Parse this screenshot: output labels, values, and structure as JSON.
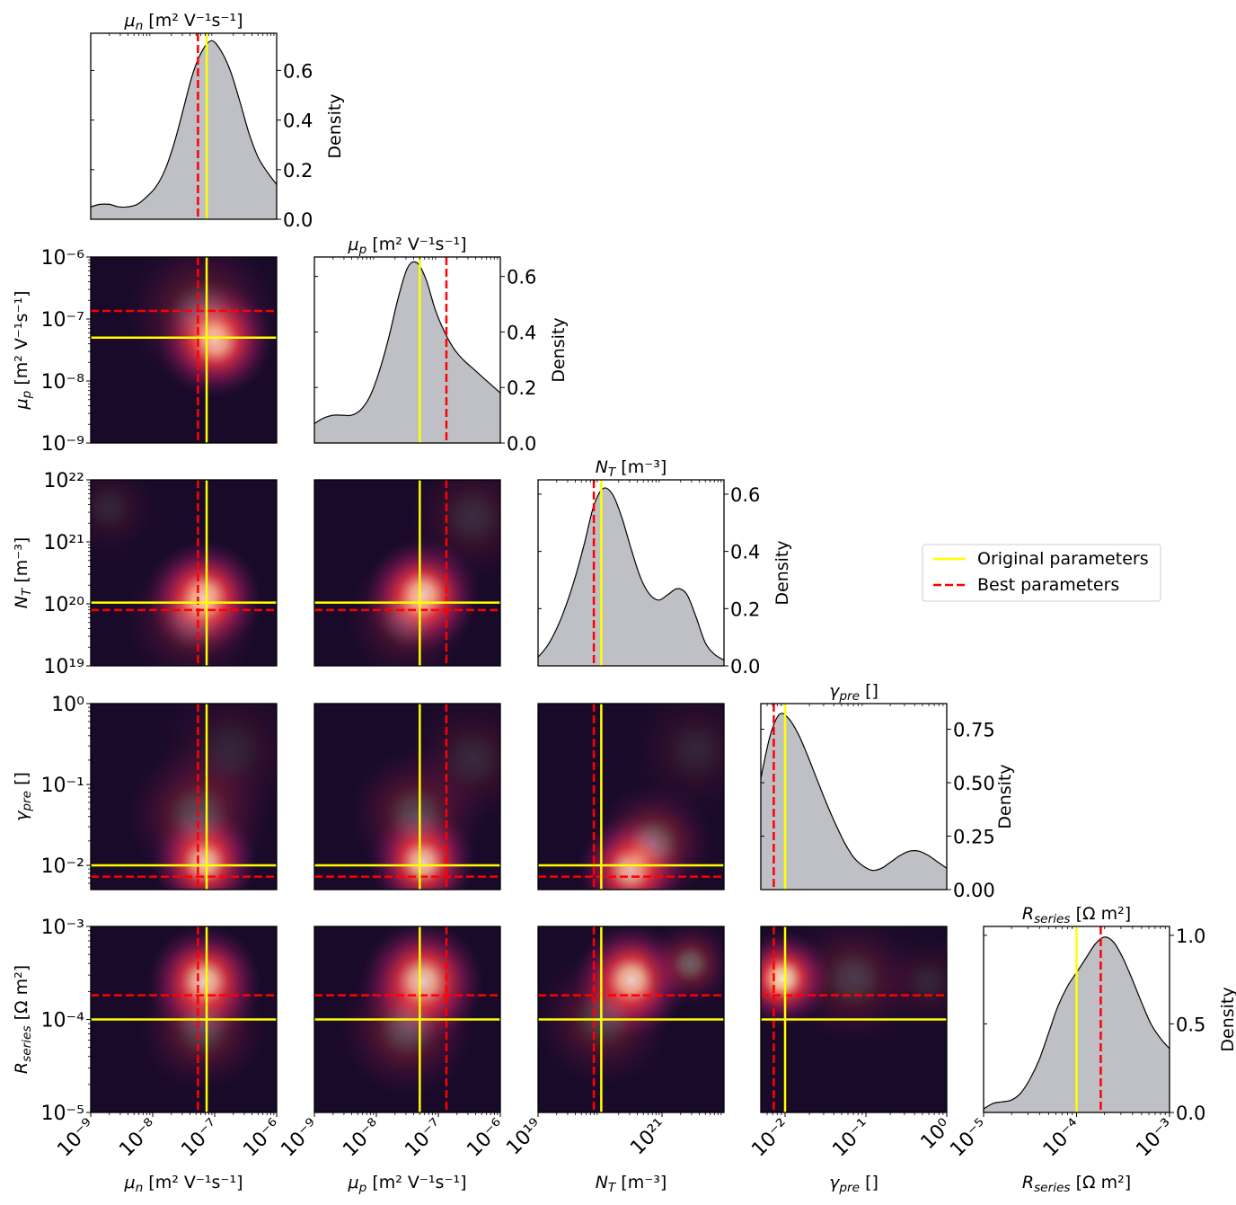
{
  "chart_data": {
    "type": "corner",
    "colors": {
      "original": "#ffff00",
      "best": "#ff0000",
      "kde_fill": "#bfc0c5",
      "kde_line": "#000000",
      "heat_low": "#03051a",
      "heat_mid": "#a11a5b",
      "heat_high": "#faebdd"
    },
    "legend": {
      "position": "right-middle",
      "original_label": "Original parameters",
      "best_label": "Best parameters"
    },
    "parameters": [
      {
        "key": "mun",
        "label": "μn [m² V⁻¹s⁻¹]",
        "sym": "μ",
        "sub": "n",
        "unit": " [m² V⁻¹s⁻¹]",
        "log_min": -9,
        "log_max": -6,
        "ticks": [
          {
            "exp": -9,
            "label": "10⁻⁹"
          },
          {
            "exp": -8,
            "label": "10⁻⁸"
          },
          {
            "exp": -7,
            "label": "10⁻⁷"
          },
          {
            "exp": -6,
            "label": "10⁻⁶"
          }
        ],
        "original_log": -7.13,
        "best_log": -7.27,
        "density_ticks": [
          {
            "value": 0.0,
            "label": "0.0"
          },
          {
            "value": 0.2,
            "label": "0.2"
          },
          {
            "value": 0.4,
            "label": "0.4"
          },
          {
            "value": 0.6,
            "label": "0.6"
          }
        ],
        "density_max": 0.75,
        "density": [
          0.05,
          0.06,
          0.06,
          0.05,
          0.05,
          0.06,
          0.09,
          0.13,
          0.2,
          0.31,
          0.45,
          0.59,
          0.68,
          0.72,
          0.68,
          0.6,
          0.48,
          0.35,
          0.25,
          0.19,
          0.14
        ]
      },
      {
        "key": "mup",
        "label": "μp [m² V⁻¹s⁻¹]",
        "sym": "μ",
        "sub": "p",
        "unit": " [m² V⁻¹s⁻¹]",
        "log_min": -9,
        "log_max": -6,
        "ticks": [
          {
            "exp": -9,
            "label": "10⁻⁹"
          },
          {
            "exp": -8,
            "label": "10⁻⁸"
          },
          {
            "exp": -7,
            "label": "10⁻⁷"
          },
          {
            "exp": -6,
            "label": "10⁻⁶"
          }
        ],
        "original_log": -7.3,
        "best_log": -6.87,
        "density_ticks": [
          {
            "value": 0.0,
            "label": "0.0"
          },
          {
            "value": 0.2,
            "label": "0.2"
          },
          {
            "value": 0.4,
            "label": "0.4"
          },
          {
            "value": 0.6,
            "label": "0.6"
          }
        ],
        "density_max": 0.67,
        "density": [
          0.07,
          0.09,
          0.1,
          0.1,
          0.1,
          0.12,
          0.17,
          0.26,
          0.38,
          0.52,
          0.63,
          0.65,
          0.59,
          0.48,
          0.4,
          0.34,
          0.3,
          0.27,
          0.24,
          0.21,
          0.18
        ]
      },
      {
        "key": "nt",
        "label": "NT [m⁻³]",
        "sym": "N",
        "sub": "T",
        "unit": " [m⁻³]",
        "log_min": 19,
        "log_max": 22,
        "ticks": [
          {
            "exp": 19,
            "label": "10¹⁹"
          },
          {
            "exp": 21,
            "label": "10²¹"
          }
        ],
        "axis_ticks": [
          {
            "exp": 19,
            "label": "10¹⁹"
          },
          {
            "exp": 20,
            "label": "10²⁰"
          },
          {
            "exp": 21,
            "label": "10²¹"
          },
          {
            "exp": 22,
            "label": "10²²"
          }
        ],
        "original_log": 20.02,
        "best_log": 19.9,
        "density_ticks": [
          {
            "value": 0.0,
            "label": "0.0"
          },
          {
            "value": 0.2,
            "label": "0.2"
          },
          {
            "value": 0.4,
            "label": "0.4"
          },
          {
            "value": 0.6,
            "label": "0.6"
          }
        ],
        "density_max": 0.65,
        "density": [
          0.03,
          0.07,
          0.13,
          0.21,
          0.31,
          0.43,
          0.56,
          0.62,
          0.6,
          0.52,
          0.41,
          0.31,
          0.25,
          0.23,
          0.25,
          0.27,
          0.25,
          0.17,
          0.08,
          0.04,
          0.02
        ]
      },
      {
        "key": "gpre",
        "label": "γpre []",
        "sym": "γ",
        "sub": "pre",
        "unit": " []",
        "log_min": -2.3,
        "log_max": 0,
        "ticks": [
          {
            "exp": -2,
            "label": "10⁻²"
          },
          {
            "exp": -1,
            "label": "10⁻¹"
          },
          {
            "exp": 0,
            "label": "10⁰"
          }
        ],
        "original_log": -2.0,
        "best_log": -2.14,
        "density_ticks": [
          {
            "value": 0.0,
            "label": "0.00"
          },
          {
            "value": 0.25,
            "label": "0.25"
          },
          {
            "value": 0.5,
            "label": "0.50"
          },
          {
            "value": 0.75,
            "label": "0.75"
          }
        ],
        "density_max": 0.87,
        "density": [
          0.52,
          0.72,
          0.82,
          0.8,
          0.73,
          0.63,
          0.52,
          0.41,
          0.31,
          0.22,
          0.15,
          0.11,
          0.09,
          0.1,
          0.13,
          0.16,
          0.18,
          0.18,
          0.16,
          0.13,
          0.1
        ]
      },
      {
        "key": "rseries",
        "label": "Rseries [Ω m²]",
        "sym": "R",
        "sub": "series",
        "unit": " [Ω m²]",
        "log_min": -5,
        "log_max": -3,
        "ticks": [
          {
            "exp": -5,
            "label": "10⁻⁵"
          },
          {
            "exp": -4,
            "label": "10⁻⁴"
          },
          {
            "exp": -3,
            "label": "10⁻³"
          }
        ],
        "original_log": -4.0,
        "best_log": -3.74,
        "density_ticks": [
          {
            "value": 0.0,
            "label": "0.0"
          },
          {
            "value": 0.5,
            "label": "0.5"
          },
          {
            "value": 1.0,
            "label": "1.0"
          }
        ],
        "density_max": 1.05,
        "density": [
          0.02,
          0.05,
          0.06,
          0.07,
          0.11,
          0.19,
          0.3,
          0.45,
          0.6,
          0.71,
          0.79,
          0.87,
          0.95,
          0.99,
          0.96,
          0.87,
          0.75,
          0.62,
          0.5,
          0.42,
          0.36
        ]
      }
    ],
    "density_label": "Density",
    "heatmaps": [
      {
        "row": 1,
        "col": 0,
        "blobs": [
          {
            "x": 0.67,
            "y": 0.55,
            "w": 1.0,
            "s": 0.13
          },
          {
            "x": 0.6,
            "y": 0.7,
            "w": 0.28,
            "s": 0.18
          }
        ]
      },
      {
        "row": 2,
        "col": 0,
        "blobs": [
          {
            "x": 0.61,
            "y": 0.37,
            "w": 1.0,
            "s": 0.13
          },
          {
            "x": 0.1,
            "y": 0.85,
            "w": 0.12,
            "s": 0.12
          },
          {
            "x": 0.55,
            "y": 0.25,
            "w": 0.25,
            "s": 0.16
          }
        ]
      },
      {
        "row": 2,
        "col": 1,
        "blobs": [
          {
            "x": 0.58,
            "y": 0.38,
            "w": 1.0,
            "s": 0.13
          },
          {
            "x": 0.85,
            "y": 0.8,
            "w": 0.15,
            "s": 0.16
          },
          {
            "x": 0.5,
            "y": 0.25,
            "w": 0.22,
            "s": 0.15
          }
        ]
      },
      {
        "row": 3,
        "col": 0,
        "blobs": [
          {
            "x": 0.61,
            "y": 0.15,
            "w": 1.0,
            "s": 0.12
          },
          {
            "x": 0.58,
            "y": 0.4,
            "w": 0.3,
            "s": 0.17
          },
          {
            "x": 0.75,
            "y": 0.75,
            "w": 0.12,
            "s": 0.18
          }
        ]
      },
      {
        "row": 3,
        "col": 1,
        "blobs": [
          {
            "x": 0.58,
            "y": 0.15,
            "w": 1.0,
            "s": 0.12
          },
          {
            "x": 0.55,
            "y": 0.4,
            "w": 0.28,
            "s": 0.16
          },
          {
            "x": 0.85,
            "y": 0.7,
            "w": 0.14,
            "s": 0.16
          }
        ]
      },
      {
        "row": 3,
        "col": 2,
        "blobs": [
          {
            "x": 0.5,
            "y": 0.11,
            "w": 1.0,
            "s": 0.12
          },
          {
            "x": 0.62,
            "y": 0.25,
            "w": 0.38,
            "s": 0.14
          },
          {
            "x": 0.85,
            "y": 0.75,
            "w": 0.12,
            "s": 0.16
          }
        ]
      },
      {
        "row": 4,
        "col": 0,
        "blobs": [
          {
            "x": 0.61,
            "y": 0.7,
            "w": 1.0,
            "s": 0.13
          },
          {
            "x": 0.6,
            "y": 0.45,
            "w": 0.28,
            "s": 0.15
          }
        ]
      },
      {
        "row": 4,
        "col": 1,
        "blobs": [
          {
            "x": 0.58,
            "y": 0.7,
            "w": 1.0,
            "s": 0.14
          },
          {
            "x": 0.5,
            "y": 0.45,
            "w": 0.3,
            "s": 0.16
          }
        ]
      },
      {
        "row": 4,
        "col": 2,
        "blobs": [
          {
            "x": 0.5,
            "y": 0.71,
            "w": 1.0,
            "s": 0.13
          },
          {
            "x": 0.82,
            "y": 0.8,
            "w": 0.38,
            "s": 0.1
          },
          {
            "x": 0.35,
            "y": 0.5,
            "w": 0.25,
            "s": 0.16
          }
        ]
      },
      {
        "row": 4,
        "col": 3,
        "blobs": [
          {
            "x": 0.12,
            "y": 0.72,
            "w": 1.0,
            "s": 0.11
          },
          {
            "x": 0.5,
            "y": 0.72,
            "w": 0.22,
            "s": 0.16
          },
          {
            "x": 0.9,
            "y": 0.7,
            "w": 0.12,
            "s": 0.12
          }
        ]
      }
    ]
  }
}
